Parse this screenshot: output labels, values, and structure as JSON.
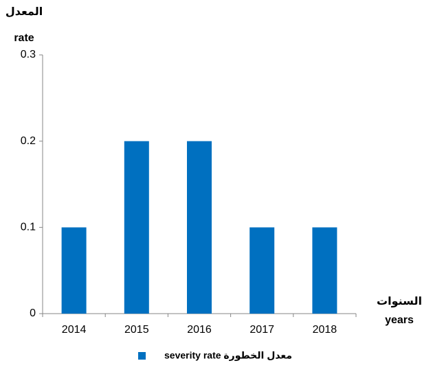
{
  "chart_data": {
    "type": "bar",
    "y_label": [
      "المعدل",
      "rate"
    ],
    "x_label": [
      "السنوات",
      "years"
    ],
    "categories": [
      "2014",
      "2015",
      "2016",
      "2017",
      "2018"
    ],
    "series": [
      {
        "name": "معدل الخطورة severity rate",
        "color": "#0070c0",
        "values": [
          0.1,
          0.2,
          0.2,
          0.1,
          0.1
        ]
      }
    ],
    "ylim": [
      0,
      0.3
    ],
    "yticks": [
      0,
      0.1,
      0.2,
      0.3
    ],
    "grid": false,
    "legend": "bottom"
  }
}
